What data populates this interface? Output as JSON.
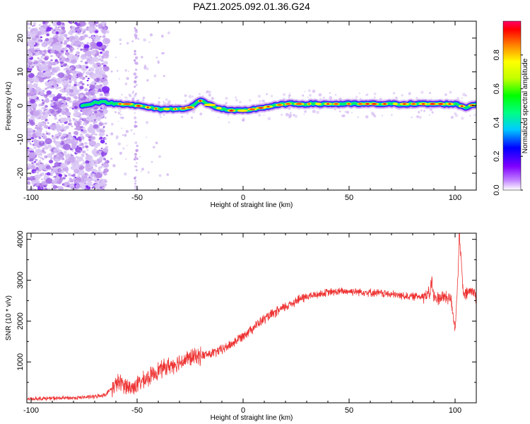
{
  "title": "PAZ1.2025.092.01.36.G24",
  "chart_data": [
    {
      "type": "heatmap",
      "xlabel": "Height of straight line (km)",
      "ylabel": "Frequency (Hz)",
      "xlim": [
        -102,
        110
      ],
      "ylim": [
        -25,
        25
      ],
      "xticks": [
        -100,
        -50,
        0,
        50,
        100
      ],
      "xtick_labels": [
        "-100",
        "-50",
        "0",
        "50",
        "100"
      ],
      "yticks": [
        -20,
        -10,
        0,
        10,
        20
      ],
      "ytick_labels": [
        "-20",
        "-10",
        "0",
        "10",
        "20"
      ],
      "ridge": {
        "x": [
          -75,
          -70,
          -65,
          -60,
          -55,
          -50,
          -45,
          -40,
          -35,
          -30,
          -25,
          -20,
          -15,
          -10,
          -5,
          0,
          5,
          10,
          15,
          20,
          25,
          30,
          35,
          40,
          45,
          50,
          55,
          60,
          65,
          70,
          75,
          80,
          85,
          90,
          95,
          100,
          105,
          110
        ],
        "y": [
          0,
          1,
          1,
          0.5,
          0.5,
          0,
          -0.5,
          -1,
          -1,
          -1,
          -0.5,
          1.5,
          0,
          -1,
          -1.5,
          -1.5,
          -1,
          -0.5,
          0,
          0.5,
          0.5,
          0.5,
          0.5,
          0.5,
          0.5,
          0.5,
          0.5,
          0.5,
          0.5,
          0.5,
          0.5,
          0.5,
          0.5,
          0.5,
          0.5,
          0.5,
          -0.5,
          0.5
        ]
      },
      "colorbar": {
        "label": "Normalized spectral amplitude",
        "ticks": [
          0.0,
          0.2,
          0.4,
          0.6,
          0.8
        ],
        "tick_labels": [
          "0.0",
          "0.2",
          "0.4",
          "0.6",
          "0.8"
        ],
        "range": [
          0,
          1
        ]
      },
      "grid": false
    },
    {
      "type": "line",
      "xlabel": "Height of straight line (km)",
      "ylabel": "SNR (10 * v/v)",
      "xlim": [
        -102,
        110
      ],
      "ylim": [
        0,
        4150
      ],
      "xticks": [
        -100,
        -50,
        0,
        50,
        100
      ],
      "xtick_labels": [
        "-100",
        "-50",
        "0",
        "50",
        "100"
      ],
      "yticks": [
        1000,
        2000,
        3000,
        4000
      ],
      "ytick_labels": [
        "1000",
        "2000",
        "3000",
        "4000"
      ],
      "series": [
        {
          "color": "#ee3333",
          "x": [
            -102,
            -90,
            -80,
            -70,
            -65,
            -62,
            -59,
            -56,
            -53,
            -50,
            -45,
            -40,
            -35,
            -30,
            -25,
            -20,
            -15,
            -10,
            -5,
            0,
            5,
            10,
            15,
            20,
            25,
            30,
            35,
            40,
            45,
            50,
            55,
            60,
            65,
            70,
            75,
            80,
            85,
            88,
            89,
            90,
            95,
            98,
            100,
            101,
            102,
            104,
            106,
            108,
            110
          ],
          "y": [
            100,
            110,
            120,
            150,
            200,
            350,
            500,
            450,
            350,
            450,
            600,
            800,
            900,
            1000,
            1100,
            1150,
            1200,
            1300,
            1450,
            1650,
            1850,
            2050,
            2200,
            2350,
            2500,
            2600,
            2650,
            2700,
            2720,
            2730,
            2720,
            2700,
            2680,
            2650,
            2620,
            2600,
            2620,
            2650,
            3000,
            2550,
            2600,
            2550,
            1800,
            2700,
            4100,
            2600,
            2700,
            2750,
            2600
          ]
        }
      ],
      "grid": false
    }
  ]
}
